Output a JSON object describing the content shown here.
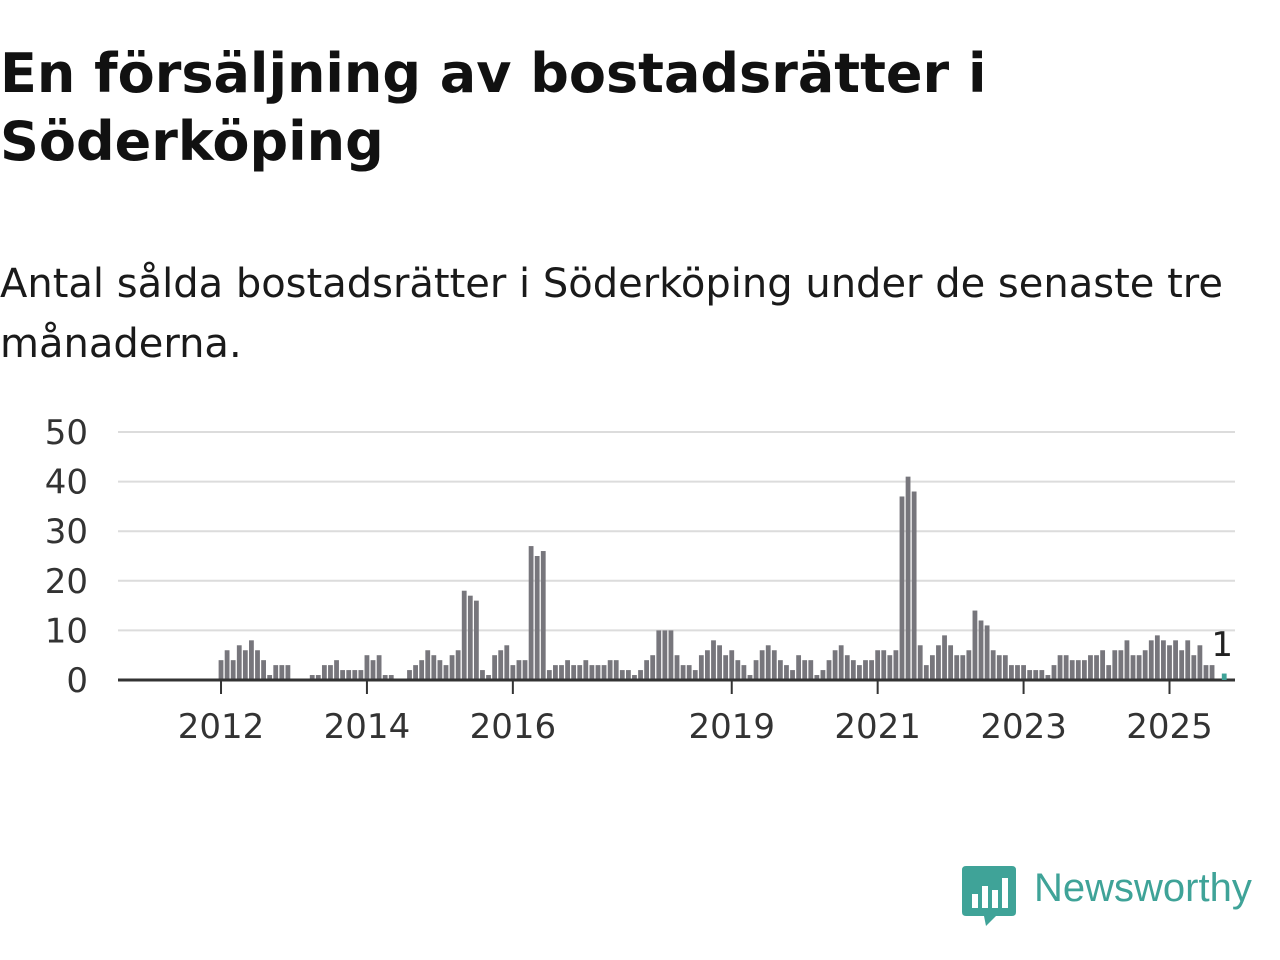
{
  "title": "En försäljning av bostadsrätter i Söderköping",
  "subtitle": "Antal sålda bostadsrätter i Söderköping under de senaste tre månaderna.",
  "brand": {
    "name": "Newsworthy",
    "icon": "newsworthy-logo-icon",
    "color": "#3fa398"
  },
  "colors": {
    "bar": "#77767c",
    "highlight": "#3fa398",
    "grid": "#dcdcdc",
    "axis": "#333333"
  },
  "chart_data": {
    "type": "bar",
    "title": "",
    "xlabel": "",
    "ylabel": "",
    "ylim": [
      0,
      50
    ],
    "yticks": [
      0,
      10,
      20,
      30,
      40,
      50
    ],
    "xticks": [
      {
        "label": "2012",
        "index": 9
      },
      {
        "label": "2014",
        "index": 33
      },
      {
        "label": "2016",
        "index": 57
      },
      {
        "label": "2019",
        "index": 93
      },
      {
        "label": "2021",
        "index": 117
      },
      {
        "label": "2023",
        "index": 141
      },
      {
        "label": "2025",
        "index": 165
      }
    ],
    "grid": true,
    "legend": "none",
    "values": [
      0,
      0,
      0,
      0,
      0,
      0,
      0,
      0,
      0,
      4,
      6,
      4,
      7,
      6,
      8,
      6,
      4,
      1,
      3,
      3,
      3,
      0,
      0,
      0,
      1,
      1,
      3,
      3,
      4,
      2,
      2,
      2,
      2,
      5,
      4,
      5,
      1,
      1,
      0,
      0,
      2,
      3,
      4,
      6,
      5,
      4,
      3,
      5,
      6,
      18,
      17,
      16,
      2,
      1,
      5,
      6,
      7,
      3,
      4,
      4,
      27,
      25,
      26,
      2,
      3,
      3,
      4,
      3,
      3,
      4,
      3,
      3,
      3,
      4,
      4,
      2,
      2,
      1,
      2,
      4,
      5,
      10,
      10,
      10,
      5,
      3,
      3,
      2,
      5,
      6,
      8,
      7,
      5,
      6,
      4,
      3,
      1,
      4,
      6,
      7,
      6,
      4,
      3,
      2,
      5,
      4,
      4,
      1,
      2,
      4,
      6,
      7,
      5,
      4,
      3,
      4,
      4,
      6,
      6,
      5,
      6,
      37,
      41,
      38,
      7,
      3,
      5,
      7,
      9,
      7,
      5,
      5,
      6,
      14,
      12,
      11,
      6,
      5,
      5,
      3,
      3,
      3,
      2,
      2,
      2,
      1,
      3,
      5,
      5,
      4,
      4,
      4,
      5,
      5,
      6,
      3,
      6,
      6,
      8,
      5,
      5,
      6,
      8,
      9,
      8,
      7,
      8,
      6,
      8,
      5,
      7,
      3,
      3,
      0,
      1
    ],
    "highlight_index": 174,
    "highlight_label": "1"
  }
}
